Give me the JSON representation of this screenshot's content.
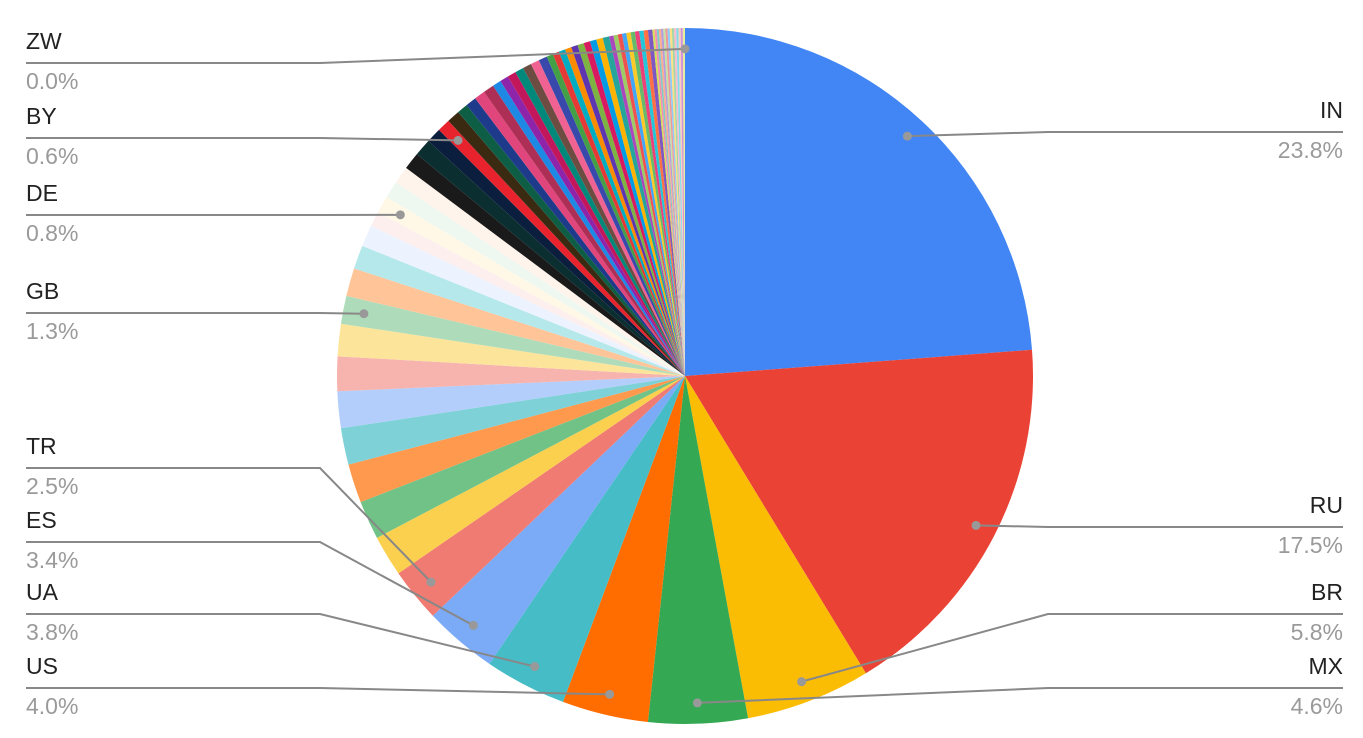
{
  "chart_data": {
    "type": "pie",
    "categories": [
      "IN",
      "RU",
      "BR",
      "MX",
      "US",
      "UA",
      "ES",
      "TR",
      null,
      null,
      null,
      null,
      null,
      null,
      null,
      "GB",
      null,
      null,
      null,
      null,
      "DE",
      null,
      null,
      null,
      null,
      null,
      "BY",
      null,
      null,
      null,
      null,
      null,
      null,
      null,
      null,
      null,
      null,
      null,
      null,
      null,
      null,
      null,
      null,
      null,
      null,
      null,
      null,
      null,
      null,
      null,
      null,
      null,
      null,
      null,
      null,
      null,
      null,
      null,
      null,
      null,
      null,
      null,
      null,
      null,
      null,
      null,
      null,
      null,
      null,
      null,
      null,
      null,
      null,
      null,
      "ZW"
    ],
    "values": [
      23.8,
      17.5,
      5.8,
      4.6,
      4.0,
      3.8,
      3.4,
      2.5,
      1.9,
      1.8,
      1.8,
      1.7,
      1.7,
      1.6,
      1.5,
      1.3,
      1.3,
      1.1,
      1.0,
      0.7,
      0.8,
      0.8,
      0.8,
      0.8,
      0.8,
      0.7,
      0.6,
      0.6,
      0.5,
      0.5,
      0.5,
      0.5,
      0.4,
      0.4,
      0.4,
      0.4,
      0.4,
      0.4,
      0.4,
      0.3,
      0.3,
      0.3,
      0.3,
      0.3,
      0.3,
      0.3,
      0.3,
      0.3,
      0.3,
      0.2,
      0.2,
      0.2,
      0.2,
      0.2,
      0.2,
      0.2,
      0.2,
      0.2,
      0.2,
      0.1,
      0.1,
      0.1,
      0.1,
      0.1,
      0.1,
      0.1,
      0.1,
      0.1,
      0.1,
      0.1,
      0.1,
      0.1,
      0.1,
      0.1,
      0.0
    ],
    "value_labels": [
      "23.8%",
      "17.5%",
      "5.8%",
      "4.6%",
      "4.0%",
      "3.8%",
      "3.4%",
      "2.5%",
      null,
      null,
      null,
      null,
      null,
      null,
      null,
      "1.3%",
      null,
      null,
      null,
      null,
      "0.8%",
      null,
      null,
      null,
      null,
      null,
      "0.6%",
      null,
      null,
      null,
      null,
      null,
      null,
      null,
      null,
      null,
      null,
      null,
      null,
      null,
      null,
      null,
      null,
      null,
      null,
      null,
      null,
      null,
      null,
      null,
      null,
      null,
      null,
      null,
      null,
      null,
      null,
      null,
      null,
      null,
      null,
      null,
      null,
      null,
      null,
      null,
      null,
      null,
      null,
      null,
      null,
      null,
      null,
      null,
      "0.0%"
    ],
    "colors": [
      "#4285f4",
      "#ea4335",
      "#fbbc04",
      "#34a853",
      "#ff6d01",
      "#46bdc6",
      "#7baaf7",
      "#f07b72",
      "#fcd04f",
      "#71c287",
      "#ff994d",
      "#7ed1d7",
      "#b3cefb",
      "#f7b4ae",
      "#fde49b",
      "#aedcba",
      "#ffc599",
      "#b5e8eb",
      "#ecf3fe",
      "#fdefee",
      "#fff8e6",
      "#eef8f1",
      "#fff4ec",
      "#1a1a1a",
      "#0b2e30",
      "#0c1e3e",
      "#e8232e",
      "#3b2a12",
      "#0d5e45",
      "#1e3a8a",
      "#e0457b",
      "#ad2f55",
      "#1e88e5",
      "#8e24aa",
      "#c2185b",
      "#00897b",
      "#6d4c41",
      "#f06292",
      "#3949ab",
      "#43a047",
      "#e53935",
      "#00acc1",
      "#fb8c00",
      "#5e35b1",
      "#7cb342",
      "#d81b60",
      "#039be5",
      "#ffb300",
      "#26a69a",
      "#ab47bc",
      "#9ccc65",
      "#ef5350",
      "#42a5f5",
      "#ffca28",
      "#66bb6a",
      "#ec407a",
      "#26c6da",
      "#ff7043",
      "#7e57c2",
      "#d4e157",
      "#f48fb1",
      "#80cbc4",
      "#ffab91",
      "#b39ddb",
      "#c5e1a5",
      "#ef9a9a",
      "#90caf9",
      "#ffe082",
      "#a5d6a7",
      "#f8bbd0",
      "#80deea",
      "#ffccbc",
      "#ce93d8",
      "#e6ee9c",
      "#bcaaa4"
    ]
  }
}
